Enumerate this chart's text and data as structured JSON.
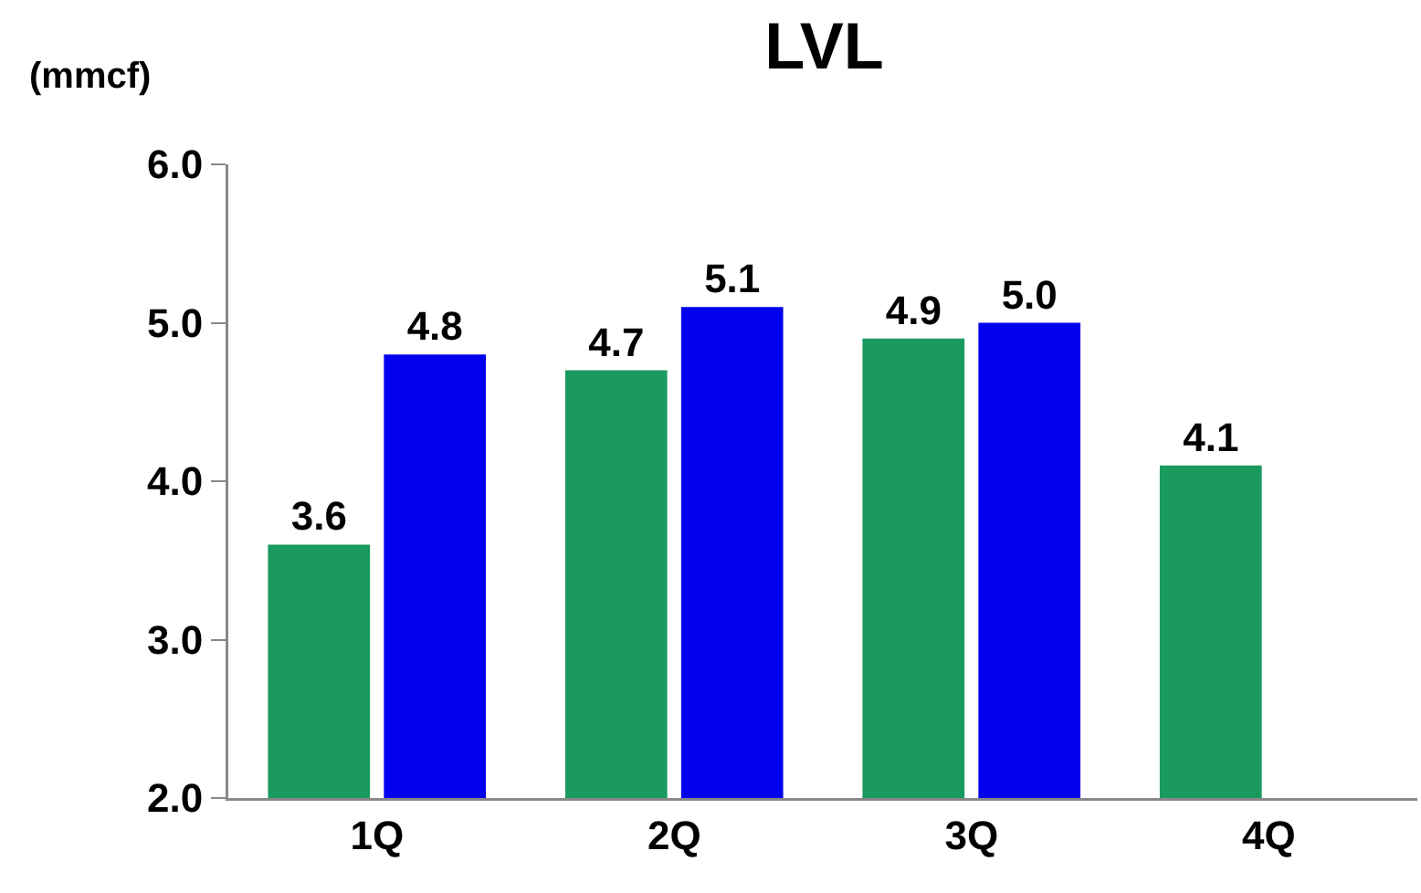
{
  "chart_data": {
    "type": "bar",
    "title": "LVL",
    "ylabel": "(mmcf)",
    "categories": [
      "1Q",
      "2Q",
      "3Q",
      "4Q"
    ],
    "series": [
      {
        "color": "#1a9a5f",
        "values": [
          3.6,
          4.7,
          4.9,
          4.1
        ],
        "value_labels": [
          "3.6",
          "4.7",
          "4.9",
          "4.1"
        ]
      },
      {
        "color": "#0000ee",
        "values": [
          4.8,
          5.1,
          5.0,
          null
        ],
        "value_labels": [
          "4.8",
          "5.1",
          "5.0",
          null
        ]
      }
    ],
    "ylim": [
      2,
      6
    ],
    "yticks": [
      {
        "value": 2,
        "label": "2.0"
      },
      {
        "value": 3,
        "label": "3.0"
      },
      {
        "value": 4,
        "label": "4.0"
      },
      {
        "value": 5,
        "label": "5.0"
      },
      {
        "value": 6,
        "label": "6.0"
      }
    ],
    "grid": false
  }
}
